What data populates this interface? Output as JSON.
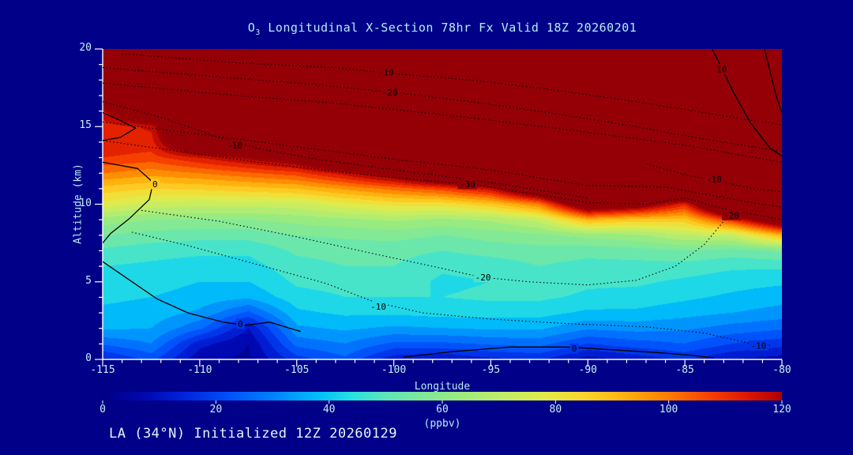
{
  "labels": {
    "title_prefix": "O",
    "title_sub": "3",
    "title_rest": " Longitudinal X-Section 78hr  Fx Valid 18Z 20260201",
    "ylabel": "Altitude (km)",
    "xlabel": "Longitude",
    "unit": "(ppbv)",
    "footer": "LA (34°N) Initialized 12Z 20260129"
  },
  "colors": {
    "background": "#000088",
    "text": "#c6eef4",
    "footer_text": "#e4f6fa",
    "axis": "#ffffff",
    "contour": "#000000"
  },
  "chart_data": {
    "type": "heatmap",
    "title": "O3 Longitudinal X-Section 78hr Fx Valid 18Z 20260201",
    "subtitle": "LA (34N) Initialized 12Z 20260129",
    "xlabel": "Longitude",
    "ylabel": "Altitude (km)",
    "unit": "ppbv",
    "x_range": [
      -115,
      -80
    ],
    "y_range": [
      0,
      20
    ],
    "x": [
      -115,
      -112.5,
      -110,
      -107.5,
      -105,
      -102.5,
      -100,
      -97.5,
      -95,
      -92.5,
      -90,
      -87.5,
      -85,
      -82.5,
      -80
    ],
    "y": [
      0,
      1,
      2,
      3,
      4,
      5,
      6,
      7,
      8,
      9,
      10,
      11,
      12,
      13,
      14,
      15,
      16,
      17,
      18,
      19,
      20
    ],
    "values": [
      [
        14,
        22,
        6,
        4,
        18,
        24,
        12,
        10,
        14,
        16,
        8,
        12,
        16,
        10,
        8
      ],
      [
        26,
        30,
        12,
        5,
        27,
        30,
        24,
        24,
        26,
        27,
        20,
        23,
        25,
        20,
        17
      ],
      [
        36,
        35,
        26,
        10,
        34,
        36,
        34,
        35,
        36,
        36,
        31,
        32,
        31,
        28,
        26
      ],
      [
        39,
        38,
        34,
        24,
        39,
        41,
        41,
        42,
        42,
        42,
        39,
        39,
        37,
        35,
        33
      ],
      [
        41,
        40,
        38,
        36,
        43,
        45,
        45,
        45,
        46,
        46,
        44,
        43,
        41,
        39,
        37
      ],
      [
        43,
        42,
        40,
        40,
        46,
        47,
        48,
        44,
        45,
        48,
        46,
        46,
        44,
        42,
        41
      ],
      [
        45,
        44,
        43,
        43,
        48,
        50,
        50,
        46,
        47,
        50,
        48,
        48,
        48,
        46,
        46
      ],
      [
        49,
        47,
        46,
        46,
        51,
        52,
        52,
        50,
        52,
        53,
        52,
        53,
        55,
        53,
        56
      ],
      [
        55,
        53,
        52,
        52,
        55,
        56,
        57,
        55,
        57,
        59,
        62,
        64,
        70,
        72,
        92
      ],
      [
        63,
        60,
        60,
        60,
        62,
        64,
        66,
        64,
        66,
        72,
        92,
        88,
        88,
        112,
        140
      ],
      [
        78,
        73,
        72,
        72,
        73,
        78,
        82,
        82,
        88,
        100,
        140,
        132,
        112,
        165,
        185
      ],
      [
        88,
        85,
        86,
        88,
        90,
        96,
        102,
        108,
        118,
        145,
        185,
        175,
        165,
        205,
        215
      ],
      [
        100,
        97,
        100,
        104,
        108,
        118,
        130,
        150,
        160,
        185,
        215,
        210,
        205,
        230,
        240
      ],
      [
        110,
        108,
        115,
        122,
        130,
        155,
        165,
        180,
        190,
        210,
        230,
        230,
        230,
        250,
        255
      ],
      [
        114,
        113,
        150,
        155,
        160,
        175,
        185,
        195,
        205,
        220,
        240,
        245,
        245,
        260,
        265
      ],
      [
        112,
        116,
        165,
        170,
        175,
        185,
        195,
        205,
        215,
        230,
        250,
        255,
        255,
        270,
        275
      ],
      [
        118,
        150,
        175,
        180,
        185,
        190,
        200,
        210,
        220,
        235,
        255,
        260,
        265,
        275,
        280
      ],
      [
        150,
        165,
        180,
        185,
        190,
        195,
        205,
        215,
        225,
        240,
        260,
        265,
        270,
        280,
        285
      ],
      [
        165,
        175,
        185,
        190,
        195,
        200,
        210,
        220,
        230,
        245,
        265,
        270,
        275,
        285,
        290
      ],
      [
        175,
        180,
        190,
        195,
        200,
        205,
        215,
        225,
        235,
        250,
        270,
        275,
        280,
        290,
        295
      ],
      [
        180,
        185,
        195,
        200,
        205,
        210,
        220,
        225,
        240,
        255,
        275,
        280,
        285,
        295,
        300
      ]
    ],
    "color_stops": [
      [
        0,
        [
          0,
          0,
          134
        ]
      ],
      [
        8,
        [
          0,
          10,
          180
        ]
      ],
      [
        15,
        [
          0,
          40,
          225
        ]
      ],
      [
        22,
        [
          0,
          80,
          250
        ]
      ],
      [
        30,
        [
          0,
          130,
          255
        ]
      ],
      [
        38,
        [
          0,
          190,
          250
        ]
      ],
      [
        44,
        [
          40,
          225,
          225
        ]
      ],
      [
        50,
        [
          95,
          230,
          185
        ]
      ],
      [
        56,
        [
          125,
          232,
          155
        ]
      ],
      [
        62,
        [
          150,
          235,
          130
        ]
      ],
      [
        70,
        [
          190,
          238,
          105
        ]
      ],
      [
        78,
        [
          225,
          235,
          75
        ]
      ],
      [
        85,
        [
          250,
          215,
          45
        ]
      ],
      [
        92,
        [
          255,
          180,
          15
        ]
      ],
      [
        100,
        [
          255,
          125,
          0
        ]
      ],
      [
        108,
        [
          245,
          60,
          0
        ]
      ],
      [
        115,
        [
          215,
          20,
          0
        ]
      ],
      [
        120,
        [
          172,
          2,
          2
        ]
      ],
      [
        125,
        [
          148,
          0,
          6
        ]
      ]
    ],
    "axes": {
      "x": {
        "major": [
          -115,
          -110,
          -105,
          -100,
          -95,
          -90,
          -85,
          -80
        ],
        "tick_labels": [
          "-115",
          "-110",
          "-105",
          "-100",
          "-95",
          "-90",
          "-85",
          "-80"
        ],
        "minor_step": 1
      },
      "y": {
        "major": [
          0,
          5,
          10,
          15,
          20
        ],
        "tick_labels": [
          "0",
          "5",
          "10",
          "15",
          "20"
        ],
        "minor_step": 1
      }
    },
    "colorbar": {
      "min": 0,
      "max": 120,
      "ticks": [
        0,
        20,
        40,
        60,
        80,
        100,
        120
      ],
      "tick_labels": [
        "0",
        "20",
        "40",
        "60",
        "80",
        "100",
        "120"
      ]
    },
    "overlay_contours": [
      {
        "level": -10,
        "style": "dotted",
        "points": [
          [
            -114,
            19.7
          ],
          [
            -108,
            19.1
          ],
          [
            -103,
            18.8
          ],
          [
            -100,
            18.4
          ],
          [
            -96,
            18.0
          ],
          [
            -92,
            17.4
          ],
          [
            -88,
            16.7
          ],
          [
            -84,
            15.9
          ],
          [
            -80,
            15.1
          ]
        ],
        "labels": [
          {
            "text": "-10",
            "lon": -100.4,
            "alt": 18.5
          }
        ]
      },
      {
        "level": -20,
        "style": "dotted",
        "points": [
          [
            -115,
            18.8
          ],
          [
            -110,
            18.3
          ],
          [
            -104,
            17.7
          ],
          [
            -100,
            17.2
          ],
          [
            -96,
            16.6
          ],
          [
            -92,
            15.9
          ],
          [
            -88,
            15.1
          ],
          [
            -84,
            14.2
          ],
          [
            -80,
            13.4
          ]
        ],
        "labels": [
          {
            "text": "-20",
            "lon": -100.2,
            "alt": 17.2
          }
        ]
      },
      {
        "level": -15,
        "style": "dotted",
        "points": [
          [
            -115,
            17.8
          ],
          [
            -109,
            17.1
          ],
          [
            -103,
            16.5
          ],
          [
            -97,
            15.7
          ],
          [
            -91,
            14.8
          ],
          [
            -85,
            13.8
          ],
          [
            -80,
            12.7
          ]
        ],
        "labels": []
      },
      {
        "level": -10,
        "style": "dotted",
        "points": [
          [
            -115,
            16.6
          ],
          [
            -112,
            15.6
          ],
          [
            -109,
            14.3
          ],
          [
            -107,
            13.6
          ],
          [
            -104,
            12.9
          ],
          [
            -101,
            12.4
          ],
          [
            -98,
            11.9
          ],
          [
            -95,
            11.4
          ],
          [
            -92,
            10.8
          ],
          [
            -90,
            10.4
          ]
        ],
        "labels": [
          {
            "text": "-10",
            "lon": -108.2,
            "alt": 13.8
          }
        ]
      },
      {
        "level": -25,
        "style": "dotted",
        "points": [
          [
            -115,
            15.3
          ],
          [
            -110,
            14.5
          ],
          [
            -105,
            13.7
          ],
          [
            -100,
            12.9
          ],
          [
            -95,
            12.2
          ],
          [
            -90,
            11.2
          ],
          [
            -86,
            11.1
          ],
          [
            -82,
            10.2
          ],
          [
            -80,
            9.8
          ]
        ],
        "labels": []
      },
      {
        "level": -30,
        "style": "dotted",
        "points": [
          [
            -115,
            14.1
          ],
          [
            -111,
            13.4
          ],
          [
            -107,
            12.7
          ],
          [
            -103,
            12.1
          ],
          [
            -99,
            11.6
          ],
          [
            -96,
            11.3
          ],
          [
            -93,
            10.7
          ],
          [
            -90,
            10.1
          ],
          [
            -87,
            10.0
          ],
          [
            -85,
            10.4
          ],
          [
            -83,
            9.7
          ],
          [
            -80,
            9.0
          ]
        ],
        "labels": [
          {
            "text": "-30",
            "lon": -96.2,
            "alt": 11.3
          }
        ]
      },
      {
        "level": -20,
        "style": "dotted",
        "points": [
          [
            -113,
            9.6
          ],
          [
            -109,
            8.9
          ],
          [
            -105,
            7.9
          ],
          [
            -101,
            6.8
          ],
          [
            -98,
            6.0
          ],
          [
            -95.5,
            5.3
          ],
          [
            -93,
            5.0
          ],
          [
            -90,
            4.8
          ],
          [
            -87.5,
            5.1
          ],
          [
            -85.5,
            6.0
          ],
          [
            -84,
            7.4
          ],
          [
            -82.8,
            9.2
          ],
          [
            -82.4,
            9.6
          ]
        ],
        "labels": [
          {
            "text": "-20",
            "lon": -95.4,
            "alt": 5.3
          },
          {
            "text": "-20",
            "lon": -82.6,
            "alt": 9.3
          }
        ]
      },
      {
        "level": -10,
        "style": "dotted",
        "points": [
          [
            -113.5,
            8.2
          ],
          [
            -110.5,
            7.3
          ],
          [
            -107,
            6.1
          ],
          [
            -103.5,
            4.9
          ],
          [
            -101,
            3.7
          ],
          [
            -98.5,
            3.0
          ],
          [
            -95,
            2.6
          ],
          [
            -91,
            2.3
          ],
          [
            -87,
            2.1
          ],
          [
            -84,
            1.7
          ],
          [
            -81.5,
            1.0
          ],
          [
            -80.5,
            0.9
          ]
        ],
        "labels": [
          {
            "text": "-10",
            "lon": -100.8,
            "alt": 3.4
          },
          {
            "text": "-10",
            "lon": -81.2,
            "alt": 0.9
          }
        ]
      },
      {
        "level": -10,
        "style": "dotted",
        "points": [
          [
            -87,
            12.6
          ],
          [
            -85,
            11.9
          ],
          [
            -83.4,
            11.5
          ],
          [
            -81.5,
            11.0
          ],
          [
            -80,
            10.8
          ]
        ],
        "labels": [
          {
            "text": "-10",
            "lon": -83.5,
            "alt": 11.6
          }
        ]
      },
      {
        "level": 0,
        "style": "solid",
        "points": [
          [
            -115,
            12.7
          ],
          [
            -113.2,
            12.3
          ],
          [
            -112.4,
            11.4
          ],
          [
            -112.6,
            10.3
          ],
          [
            -113.6,
            9.1
          ],
          [
            -114.6,
            8.1
          ],
          [
            -115,
            7.5
          ]
        ],
        "labels": [
          {
            "text": "0",
            "lon": -112.3,
            "alt": 11.3
          }
        ]
      },
      {
        "level": 0,
        "style": "solid",
        "points": [
          [
            -115,
            6.3
          ],
          [
            -113.6,
            5.1
          ],
          [
            -112.2,
            3.9
          ],
          [
            -110.6,
            3.0
          ],
          [
            -108.8,
            2.4
          ],
          [
            -107.6,
            2.2
          ],
          [
            -106.4,
            2.4
          ],
          [
            -105.6,
            2.1
          ],
          [
            -104.8,
            1.8
          ]
        ],
        "labels": [
          {
            "text": "0",
            "lon": -107.9,
            "alt": 2.3
          }
        ]
      },
      {
        "level": 0,
        "style": "solid",
        "points": [
          [
            -99.5,
            0.15
          ],
          [
            -97,
            0.5
          ],
          [
            -94,
            0.8
          ],
          [
            -91,
            0.8
          ],
          [
            -88.5,
            0.6
          ],
          [
            -86.5,
            0.45
          ],
          [
            -84.5,
            0.25
          ],
          [
            -83.5,
            0.1
          ]
        ],
        "labels": [
          {
            "text": "0",
            "lon": -90.7,
            "alt": 0.7
          }
        ]
      },
      {
        "level": 10,
        "style": "solid",
        "points": [
          [
            -83.6,
            20
          ],
          [
            -83.1,
            18.8
          ],
          [
            -82.5,
            17.2
          ],
          [
            -81.6,
            15.2
          ],
          [
            -80.6,
            13.6
          ],
          [
            -80,
            13.1
          ]
        ],
        "labels": [
          {
            "text": "10",
            "lon": -83.1,
            "alt": 18.7
          }
        ]
      },
      {
        "level": 10,
        "style": "solid",
        "points": [
          [
            -80.9,
            20
          ],
          [
            -80.3,
            17.0
          ],
          [
            -80,
            15.9
          ]
        ],
        "labels": []
      },
      {
        "level": 0,
        "style": "solid",
        "points": [
          [
            -115,
            15.9
          ],
          [
            -114.1,
            15.4
          ],
          [
            -113.3,
            14.9
          ],
          [
            -114.1,
            14.3
          ],
          [
            -115,
            14.1
          ]
        ],
        "labels": []
      }
    ]
  }
}
